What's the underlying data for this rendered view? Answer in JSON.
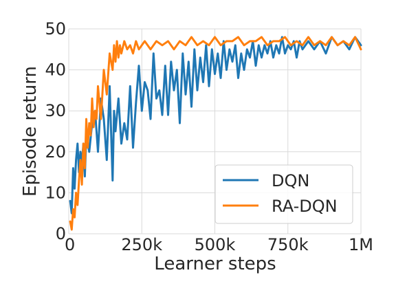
{
  "chart_data": {
    "type": "line",
    "title": "",
    "xlabel": "Learner steps",
    "ylabel": "Episode return",
    "xlim": [
      0,
      1000000
    ],
    "ylim": [
      0,
      50
    ],
    "grid": true,
    "legend_position": "lower-right",
    "x_ticks": [
      {
        "value": 0,
        "label": "0"
      },
      {
        "value": 250000,
        "label": "250k"
      },
      {
        "value": 500000,
        "label": "500k"
      },
      {
        "value": 750000,
        "label": "750k"
      },
      {
        "value": 1000000,
        "label": "1M"
      }
    ],
    "y_ticks": [
      {
        "value": 0,
        "label": "0"
      },
      {
        "value": 10,
        "label": "10"
      },
      {
        "value": 20,
        "label": "20"
      },
      {
        "value": 30,
        "label": "30"
      },
      {
        "value": 40,
        "label": "40"
      },
      {
        "value": 50,
        "label": "50"
      }
    ],
    "series": [
      {
        "name": "DQN",
        "color": "#1f77b4",
        "x": [
          5000,
          10000,
          15000,
          20000,
          25000,
          30000,
          35000,
          40000,
          45000,
          50000,
          55000,
          60000,
          70000,
          80000,
          90000,
          100000,
          110000,
          120000,
          130000,
          140000,
          150000,
          155000,
          160000,
          170000,
          180000,
          190000,
          200000,
          210000,
          220000,
          230000,
          240000,
          250000,
          260000,
          270000,
          280000,
          290000,
          300000,
          310000,
          320000,
          330000,
          340000,
          350000,
          360000,
          370000,
          380000,
          390000,
          400000,
          410000,
          420000,
          430000,
          440000,
          450000,
          460000,
          470000,
          480000,
          490000,
          500000,
          510000,
          520000,
          530000,
          540000,
          550000,
          560000,
          570000,
          580000,
          590000,
          600000,
          610000,
          620000,
          630000,
          640000,
          650000,
          660000,
          670000,
          680000,
          690000,
          700000,
          710000,
          720000,
          730000,
          740000,
          750000,
          760000,
          770000,
          780000,
          790000,
          800000,
          820000,
          840000,
          860000,
          880000,
          900000,
          920000,
          940000,
          960000,
          980000,
          1000000
        ],
        "values": [
          8,
          5,
          16,
          11,
          18,
          22,
          15,
          20,
          17,
          22,
          14,
          24,
          20,
          27,
          30,
          20,
          33,
          28,
          18,
          36,
          13,
          30,
          25,
          33,
          22,
          27,
          23,
          36,
          21,
          32,
          41,
          30,
          37,
          35,
          28,
          44,
          33,
          35,
          29,
          41,
          29,
          42,
          35,
          40,
          27,
          44,
          34,
          42,
          31,
          45,
          35,
          43,
          37,
          46,
          36,
          45,
          39,
          44,
          38,
          47,
          40,
          45,
          42,
          46,
          38,
          44,
          40,
          45,
          43,
          47,
          41,
          46,
          43,
          46,
          44,
          47,
          43,
          46,
          44,
          48,
          44,
          46,
          45,
          47,
          43,
          47,
          45,
          47,
          45,
          47,
          44,
          48,
          46,
          47,
          45,
          48,
          46
        ]
      },
      {
        "name": "RA-DQN",
        "color": "#ff7f0e",
        "x": [
          5000,
          10000,
          15000,
          20000,
          25000,
          30000,
          35000,
          40000,
          45000,
          50000,
          55000,
          60000,
          65000,
          70000,
          75000,
          80000,
          85000,
          90000,
          95000,
          100000,
          110000,
          120000,
          130000,
          140000,
          150000,
          155000,
          160000,
          165000,
          170000,
          175000,
          180000,
          190000,
          200000,
          210000,
          220000,
          230000,
          240000,
          250000,
          260000,
          280000,
          300000,
          320000,
          340000,
          360000,
          380000,
          400000,
          420000,
          440000,
          460000,
          480000,
          500000,
          520000,
          540000,
          560000,
          580000,
          600000,
          620000,
          640000,
          660000,
          680000,
          700000,
          720000,
          740000,
          760000,
          780000,
          800000,
          820000,
          840000,
          860000,
          880000,
          900000,
          920000,
          940000,
          960000,
          980000,
          1000000
        ],
        "values": [
          3,
          1,
          6,
          4,
          10,
          7,
          13,
          18,
          12,
          22,
          16,
          28,
          21,
          27,
          24,
          33,
          26,
          30,
          28,
          36,
          28,
          40,
          34,
          44,
          40,
          46,
          42,
          47,
          43,
          46,
          44,
          47,
          45,
          46,
          44,
          47,
          45,
          46,
          47,
          45,
          47,
          46,
          47,
          45,
          47,
          46,
          48,
          46,
          47,
          46,
          48,
          46,
          47,
          47,
          48,
          46,
          47,
          47,
          48,
          46,
          47,
          47,
          48,
          46,
          47,
          46,
          48,
          46,
          47,
          46,
          48,
          46,
          47,
          46,
          48,
          45
        ]
      }
    ]
  }
}
